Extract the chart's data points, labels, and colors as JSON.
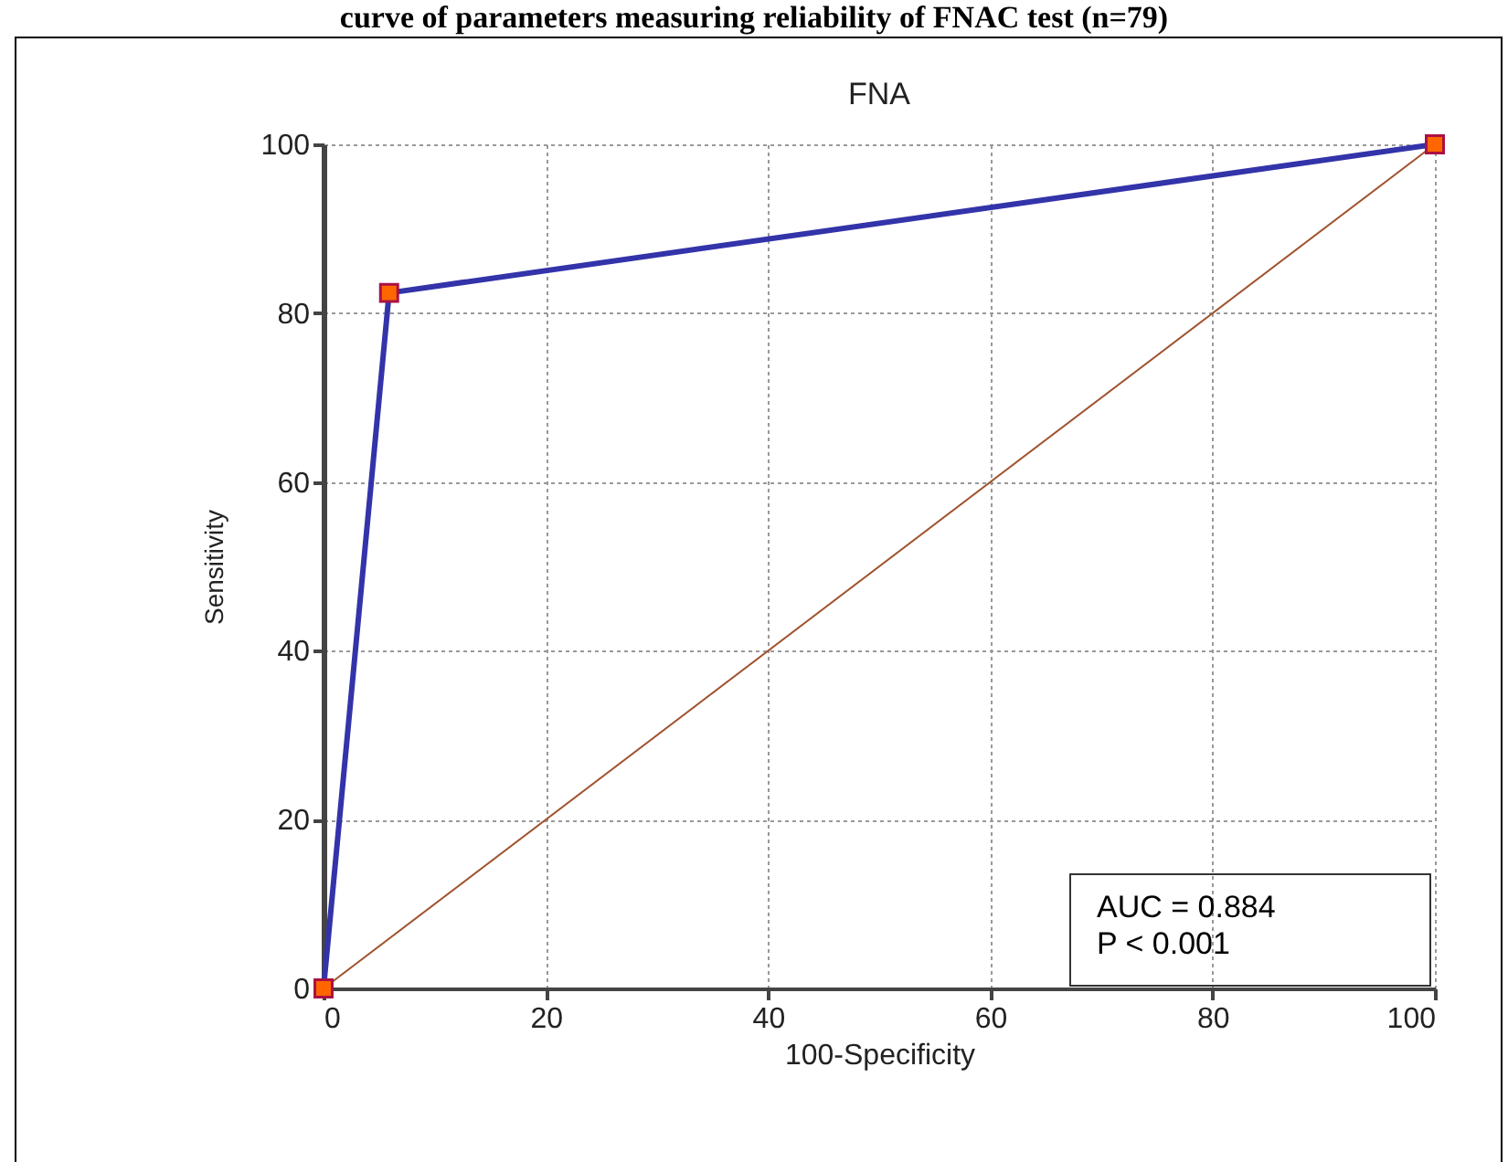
{
  "chart_data": {
    "type": "line",
    "title": "curve of parameters measuring reliability of FNAC test (n=79)",
    "subtitle": "FNA",
    "xlabel": "100-Specificity",
    "ylabel": "Sensitivity",
    "xlim": [
      0,
      100
    ],
    "ylim": [
      0,
      100
    ],
    "xticks": [
      0,
      20,
      40,
      60,
      80,
      100
    ],
    "yticks": [
      0,
      20,
      40,
      60,
      80,
      100
    ],
    "grid": true,
    "line_style": "solid",
    "series": [
      {
        "color": "#3333aa",
        "x": [
          0,
          5.9,
          100
        ],
        "values": [
          0,
          82.4,
          100
        ],
        "marker": "square"
      },
      {
        "color": "#a0522d",
        "x": [
          0,
          100
        ],
        "values": [
          0,
          100
        ]
      }
    ],
    "annotations": [
      "AUC = 0.884",
      "P < 0.001"
    ]
  }
}
